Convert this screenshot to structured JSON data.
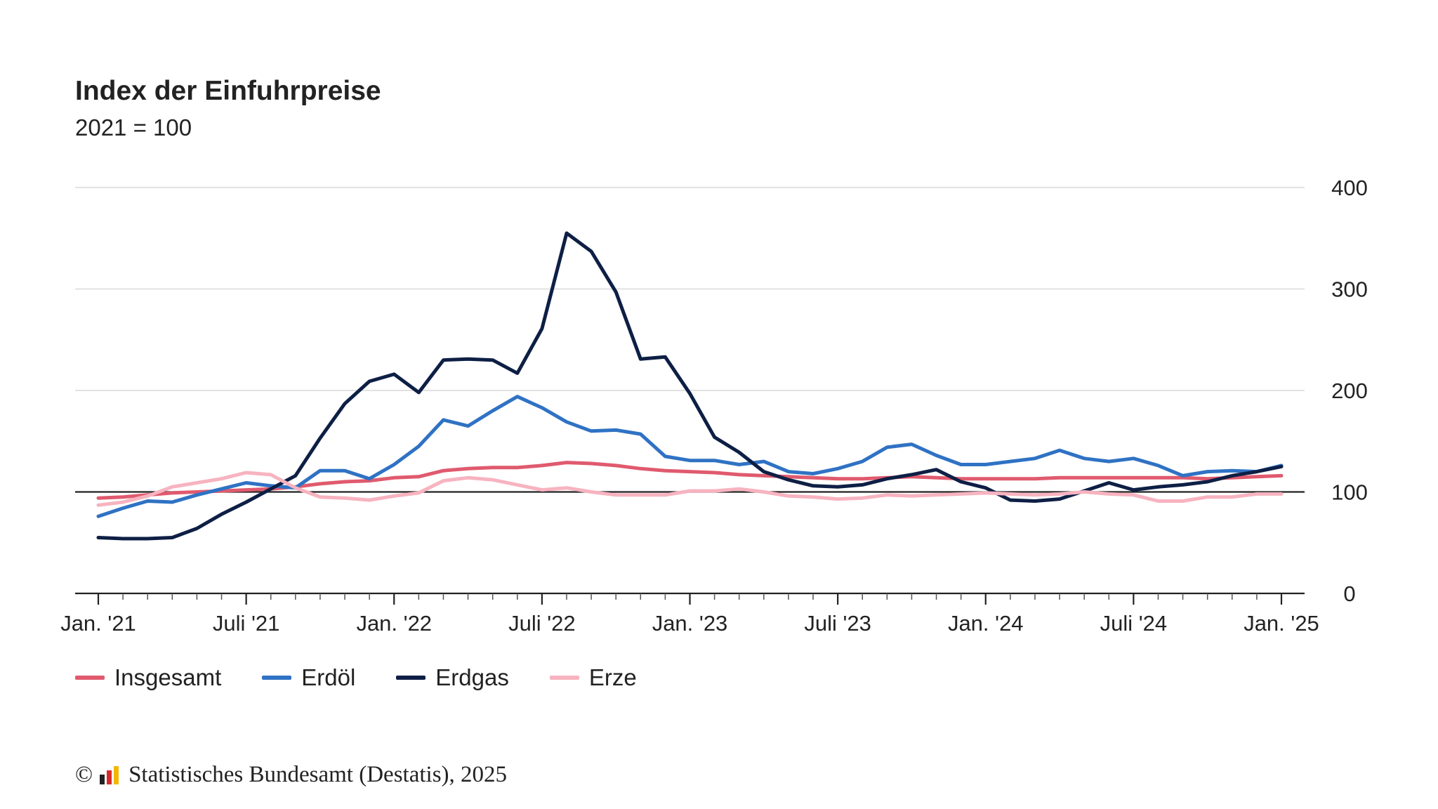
{
  "chart_data": {
    "type": "line",
    "title": "Index der Einfuhrpreise",
    "subtitle": "2021 = 100",
    "xlabel": "",
    "ylabel": "",
    "ylim": [
      0,
      400
    ],
    "yticks": [
      0,
      100,
      200,
      300,
      400
    ],
    "reference_line": 100,
    "grid": true,
    "legend_position": "bottom-left",
    "x_tick_labels": [
      {
        "month_index": 0,
        "label": "Jan. '21"
      },
      {
        "month_index": 6,
        "label": "Juli '21"
      },
      {
        "month_index": 12,
        "label": "Jan. '22"
      },
      {
        "month_index": 18,
        "label": "Juli '22"
      },
      {
        "month_index": 24,
        "label": "Jan. '23"
      },
      {
        "month_index": 30,
        "label": "Juli '23"
      },
      {
        "month_index": 36,
        "label": "Jan. '24"
      },
      {
        "month_index": 42,
        "label": "Juli '24"
      },
      {
        "month_index": 48,
        "label": "Jan. '25"
      }
    ],
    "n_months": 49,
    "series": [
      {
        "name": "Insgesamt",
        "color": "#e05a6e",
        "values": [
          94,
          95,
          97,
          99,
          100,
          101,
          102,
          103,
          105,
          108,
          110,
          111,
          114,
          115,
          121,
          123,
          124,
          124,
          126,
          129,
          128,
          126,
          123,
          121,
          120,
          119,
          117,
          116,
          115,
          114,
          113,
          113,
          114,
          115,
          114,
          113,
          113,
          113,
          113,
          114,
          114,
          114,
          114,
          114,
          114,
          113,
          114,
          115,
          116
        ]
      },
      {
        "name": "Erdöl",
        "color": "#2f72c4",
        "values": [
          76,
          84,
          91,
          90,
          97,
          103,
          109,
          106,
          104,
          121,
          121,
          113,
          127,
          145,
          171,
          165,
          180,
          194,
          183,
          169,
          160,
          161,
          157,
          135,
          131,
          131,
          127,
          130,
          120,
          118,
          123,
          130,
          144,
          147,
          136,
          127,
          127,
          130,
          133,
          141,
          133,
          130,
          133,
          126,
          116,
          120,
          121,
          120,
          126
        ]
      },
      {
        "name": "Erdgas",
        "color": "#0e1f45",
        "values": [
          55,
          54,
          54,
          55,
          64,
          78,
          90,
          103,
          116,
          153,
          187,
          209,
          216,
          198,
          230,
          231,
          230,
          217,
          261,
          355,
          337,
          297,
          231,
          233,
          197,
          154,
          139,
          120,
          112,
          106,
          105,
          107,
          113,
          117,
          122,
          110,
          104,
          92,
          91,
          93,
          101,
          109,
          102,
          105,
          107,
          110,
          116,
          120,
          125
        ]
      },
      {
        "name": "Erze",
        "color": "#f7b3c0",
        "values": [
          87,
          90,
          96,
          105,
          109,
          113,
          119,
          117,
          104,
          95,
          94,
          92,
          96,
          99,
          111,
          114,
          112,
          107,
          102,
          104,
          100,
          97,
          97,
          97,
          101,
          101,
          103,
          100,
          96,
          95,
          93,
          94,
          97,
          96,
          97,
          98,
          99,
          98,
          97,
          98,
          100,
          98,
          97,
          91,
          91,
          95,
          95,
          98,
          98
        ]
      }
    ]
  },
  "footer": {
    "copyright_symbol": "©",
    "text": "Statistisches Bundesamt (Destatis), 2025"
  }
}
